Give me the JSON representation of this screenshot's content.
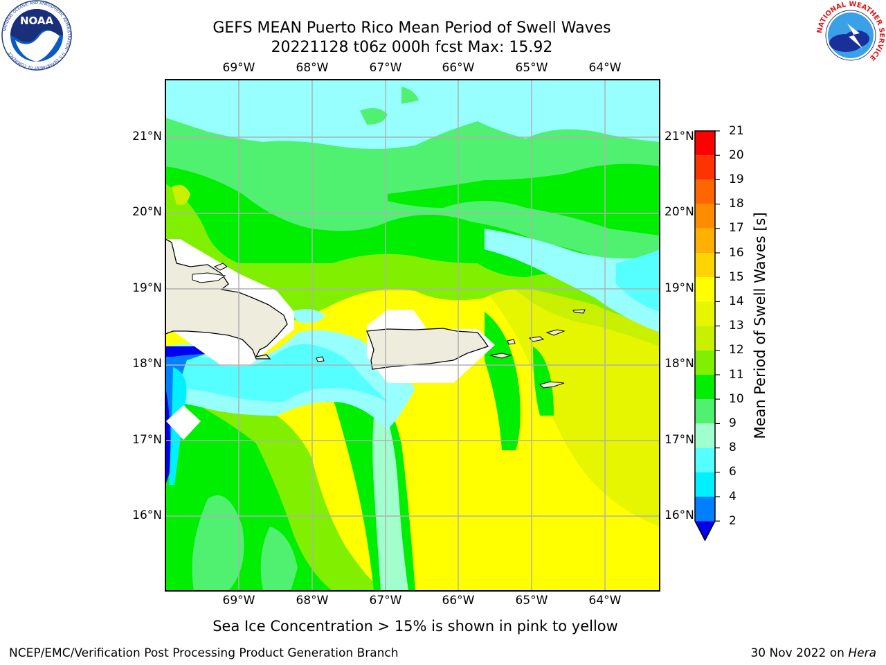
{
  "header": {
    "title_line1": "GEFS MEAN Puerto Rico Mean Period of Swell Waves",
    "title_line2": "20221128 t06z 000h fcst   Max: 15.92"
  },
  "logos": {
    "noaa_text": "NOAA",
    "noaa_ring": "NATIONAL OCEANIC AND ATMOSPHERIC ADMINISTRATION · U.S. DEPARTMENT OF COMMERCE",
    "nws_ring": "NATIONAL WEATHER SERVICE"
  },
  "map": {
    "lon_ticks": [
      "69°W",
      "68°W",
      "67°W",
      "66°W",
      "65°W",
      "64°W"
    ],
    "lat_ticks": [
      "21°N",
      "20°N",
      "19°N",
      "18°N",
      "17°N",
      "16°N"
    ],
    "land_color": "#eeecdc",
    "ocean_base_color": "#ffff00"
  },
  "colorbar": {
    "title": "Mean Period of Swell Waves [s]",
    "levels": [
      "21",
      "20",
      "19",
      "18",
      "17",
      "16",
      "15",
      "14",
      "13",
      "12",
      "11",
      "10",
      "9",
      "8",
      "6",
      "4",
      "2"
    ],
    "colors_top_to_bottom": [
      "#ff0000",
      "#ff3300",
      "#ff6600",
      "#ff8c00",
      "#ffb000",
      "#ffd400",
      "#ffff00",
      "#e6f500",
      "#c8f000",
      "#80f000",
      "#00ee00",
      "#50f070",
      "#a0ffcc",
      "#98ffff",
      "#55ffff",
      "#00f0ff",
      "#0080ff",
      "#0000ee"
    ]
  },
  "captions": {
    "sea_ice_note": "Sea Ice Concentration > 15% is shown in pink to yellow",
    "branch": "NCEP/EMC/Verification Post Processing Product Generation Branch",
    "date_prefix": "30 Nov 2022 on ",
    "host": "Hera"
  }
}
